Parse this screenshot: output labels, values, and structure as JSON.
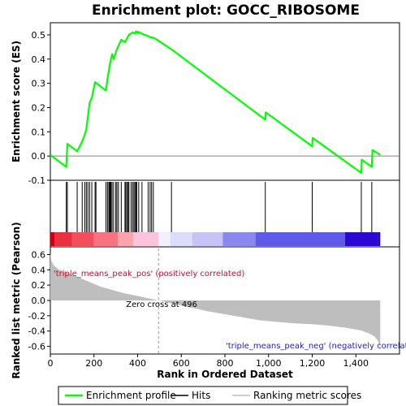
{
  "chart_data": {
    "type": "line",
    "title": "Enrichment plot: GOCC_RIBOSOME",
    "es_panel": {
      "ylabel": "Enrichment score (ES)",
      "ylim": [
        -0.1,
        0.55
      ],
      "yticks": [
        "0.5",
        "0.4",
        "0.3",
        "0.2",
        "0.1",
        "0.0",
        "-0.1"
      ],
      "ytick_values": [
        0.5,
        0.4,
        0.3,
        0.2,
        0.1,
        0.0,
        -0.1
      ],
      "series": [
        {
          "name": "Enrichment profile",
          "color": "#00ff00",
          "x": [
            0,
            73,
            78,
            123,
            146,
            158,
            165,
            172,
            180,
            190,
            205,
            255,
            262,
            268,
            275,
            283,
            290,
            305,
            325,
            342,
            360,
            377,
            388,
            393,
            396,
            397,
            400,
            405,
            413,
            420,
            431,
            440,
            448,
            457,
            464,
            472,
            489,
            555,
            985,
            987,
            1200,
            1202,
            1425,
            1427,
            1473,
            1476,
            1512
          ],
          "y": [
            0.005,
            -0.045,
            0.05,
            0.02,
            0.06,
            0.09,
            0.11,
            0.16,
            0.22,
            0.24,
            0.305,
            0.27,
            0.32,
            0.35,
            0.39,
            0.42,
            0.4,
            0.44,
            0.48,
            0.47,
            0.5,
            0.51,
            0.505,
            0.515,
            0.51,
            0.512,
            0.508,
            0.512,
            0.507,
            0.505,
            0.5,
            0.498,
            0.495,
            0.49,
            0.49,
            0.488,
            0.48,
            0.44,
            0.15,
            0.18,
            0.04,
            0.075,
            -0.07,
            -0.015,
            -0.045,
            0.025,
            0.005
          ]
        }
      ]
    },
    "hits": {
      "name": "Hits",
      "x": [
        73,
        78,
        123,
        146,
        158,
        165,
        172,
        180,
        190,
        205,
        209,
        255,
        262,
        268,
        272,
        275,
        278,
        283,
        290,
        300,
        305,
        312,
        325,
        342,
        346,
        352,
        357,
        360,
        370,
        377,
        383,
        388,
        393,
        396,
        405,
        420,
        448,
        457,
        464,
        472,
        555,
        985,
        1200,
        1425,
        1473
      ]
    },
    "colorbar": {
      "blocks": [
        {
          "x0": 0,
          "x1": 20,
          "color": "#c8000f"
        },
        {
          "x0": 20,
          "x1": 100,
          "color": "#ea2f3e"
        },
        {
          "x0": 100,
          "x1": 200,
          "color": "#f44e5c"
        },
        {
          "x0": 200,
          "x1": 310,
          "color": "#f9727f"
        },
        {
          "x0": 310,
          "x1": 380,
          "color": "#fca3ac"
        },
        {
          "x0": 380,
          "x1": 496,
          "color": "#fdc3dd"
        },
        {
          "x0": 496,
          "x1": 550,
          "color": "#f0eeff"
        },
        {
          "x0": 550,
          "x1": 650,
          "color": "#dcdcfb"
        },
        {
          "x0": 650,
          "x1": 790,
          "color": "#c4c4f6"
        },
        {
          "x0": 790,
          "x1": 940,
          "color": "#8888ef"
        },
        {
          "x0": 940,
          "x1": 1350,
          "color": "#5f5aea"
        },
        {
          "x0": 1350,
          "x1": 1500,
          "color": "#2d07d4"
        },
        {
          "x0": 1500,
          "x1": 1512,
          "color": "#3000b0"
        }
      ]
    },
    "metric_panel": {
      "ylabel": "Ranked list metric (Pearson)",
      "ylim": [
        -0.7,
        0.7
      ],
      "yticks": [
        "0.6",
        "0.4",
        "0.2",
        "0.0",
        "-0.2",
        "-0.4",
        "-0.6"
      ],
      "ytick_values": [
        0.6,
        0.4,
        0.2,
        0.0,
        -0.2,
        -0.4,
        -0.6
      ],
      "series": [
        {
          "name": "Ranking metric scores",
          "color": "#bebebe",
          "x": [
            0,
            5,
            15,
            40,
            80,
            130,
            180,
            230,
            280,
            330,
            380,
            430,
            480,
            496,
            560,
            640,
            720,
            800,
            880,
            960,
            1040,
            1120,
            1200,
            1280,
            1360,
            1420,
            1460,
            1485,
            1500,
            1508,
            1512
          ],
          "y": [
            0.62,
            0.52,
            0.46,
            0.4,
            0.36,
            0.3,
            0.24,
            0.18,
            0.14,
            0.1,
            0.07,
            0.04,
            0.01,
            0.0,
            -0.04,
            -0.09,
            -0.14,
            -0.18,
            -0.22,
            -0.26,
            -0.28,
            -0.3,
            -0.31,
            -0.33,
            -0.36,
            -0.39,
            -0.43,
            -0.47,
            -0.52,
            -0.58,
            -0.64
          ]
        }
      ],
      "zero_cross_label": "Zero cross at 496",
      "zero_cross_x": 496,
      "pos_label": "'triple_means_peak_pos' (positively correlated)",
      "neg_label": "'triple_means_peak_neg' (negatively correlated)"
    },
    "xlabel": "Rank in Ordered Dataset",
    "xlim": [
      0,
      1600
    ],
    "xticks": [
      "0",
      "200",
      "400",
      "600",
      "800",
      "1,000",
      "1,200",
      "1,400"
    ],
    "xtick_values": [
      0,
      200,
      400,
      600,
      800,
      1000,
      1200,
      1400
    ],
    "legend": {
      "placement": "bottom",
      "items": [
        {
          "label": "Enrichment profile",
          "color": "#00ff00"
        },
        {
          "label": "Hits",
          "color": "#000000"
        },
        {
          "label": "Ranking metric scores",
          "color": "#bebebe"
        }
      ]
    }
  }
}
